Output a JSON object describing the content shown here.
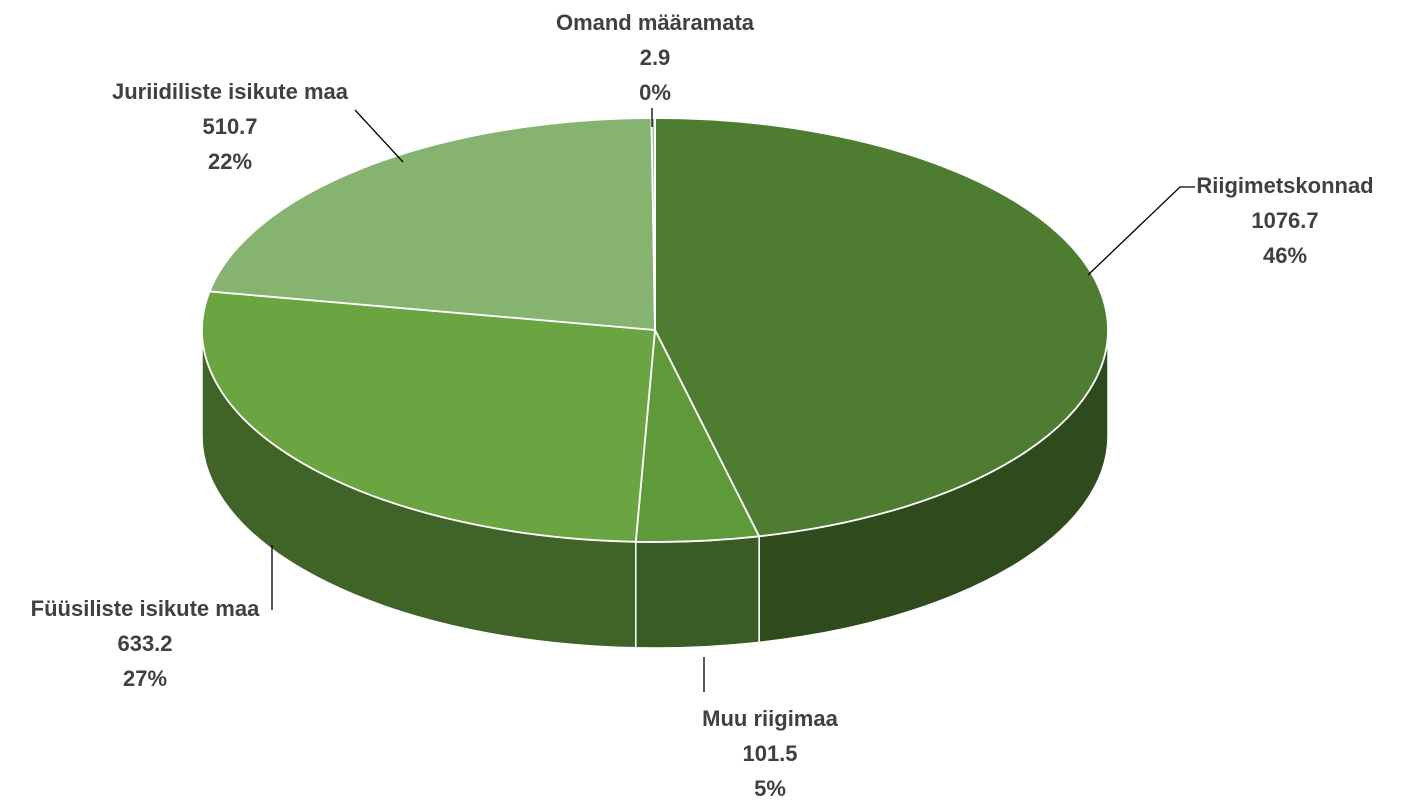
{
  "chart_data": {
    "type": "pie3d",
    "categories": [
      "Riigimetskonnad",
      "Muu riigimaa",
      "Füüsiliste isikute maa",
      "Juriidiliste isikute maa",
      "Omand määramata"
    ],
    "values": [
      1076.7,
      101.5,
      633.2,
      510.7,
      2.9
    ],
    "percent_labels": [
      "46%",
      "5%",
      "27%",
      "22%",
      "0%"
    ],
    "colors": [
      "#4e7d32",
      "#5e9a3a",
      "#6aa542",
      "#86b470",
      "#9bc48a"
    ]
  }
}
